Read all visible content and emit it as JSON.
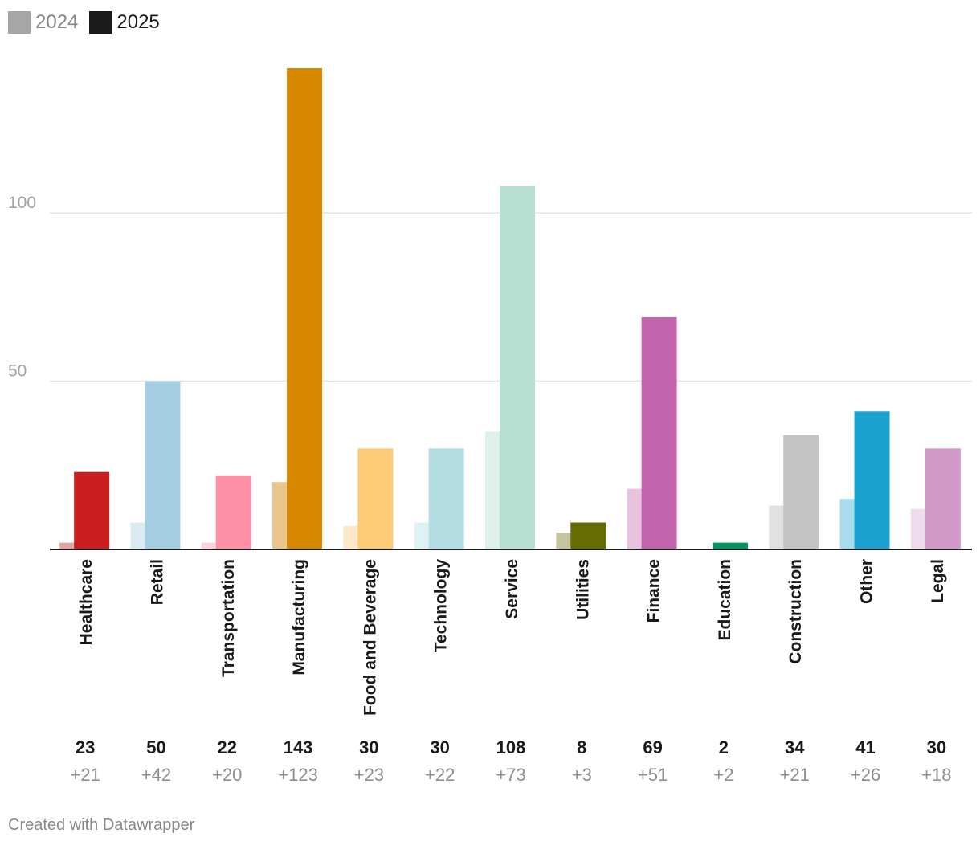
{
  "chart_data": {
    "type": "bar",
    "legend": [
      {
        "name": "2024",
        "color": "#a6a6a6",
        "text_color": "#888888"
      },
      {
        "name": "2025",
        "color": "#1a1a1a",
        "text_color": "#1a1a1a"
      }
    ],
    "categories": [
      "Healthcare",
      "Retail",
      "Transportation",
      "Manufacturing",
      "Food and Beverage",
      "Technology",
      "Service",
      "Utilities",
      "Finance",
      "Education",
      "Construction",
      "Other",
      "Legal"
    ],
    "series": [
      {
        "name": "2024",
        "values": [
          2,
          8,
          2,
          20,
          7,
          8,
          35,
          5,
          18,
          0,
          13,
          15,
          12
        ]
      },
      {
        "name": "2025",
        "values": [
          23,
          50,
          22,
          143,
          30,
          30,
          108,
          8,
          69,
          2,
          34,
          41,
          30
        ]
      }
    ],
    "colors_2025": [
      "#c91d1f",
      "#a6cee3",
      "#fd8fa6",
      "#d68700",
      "#fdca78",
      "#b3dde3",
      "#bae0d4",
      "#666d00",
      "#c264ab",
      "#00975e",
      "#c4c4c4",
      "#1ba2cf",
      "#d39ac9"
    ],
    "colors_2024": [
      "#e1a5a5",
      "#dbebf4",
      "#fcd3db",
      "#e8c58b",
      "#fde9ca",
      "#def1f3",
      "#def0eb",
      "#c4c49e",
      "#e9c2df",
      "#99d3bc",
      "#e1e1e1",
      "#a8dcec",
      "#eedbeb"
    ],
    "totals": [
      "23",
      "50",
      "22",
      "143",
      "30",
      "30",
      "108",
      "8",
      "69",
      "2",
      "34",
      "41",
      "30"
    ],
    "changes": [
      "+21",
      "+42",
      "+20",
      "+123",
      "+23",
      "+22",
      "+73",
      "+3",
      "+51",
      "+2",
      "+21",
      "+26",
      "+18"
    ],
    "yticks": [
      50,
      100
    ],
    "ylim": [
      0,
      143
    ],
    "gridlines": true
  },
  "footer": "Created with Datawrapper"
}
